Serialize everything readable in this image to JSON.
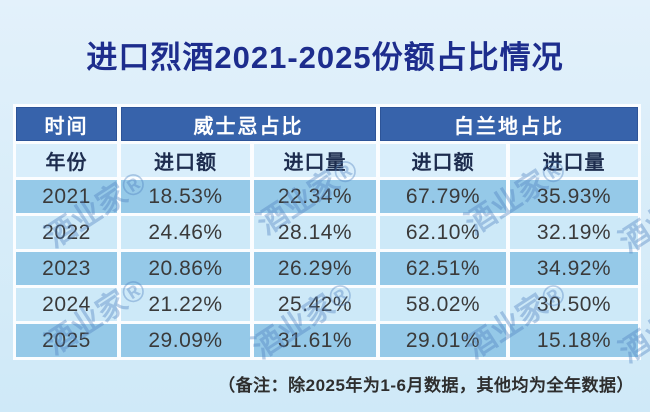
{
  "title": "进口烈酒2021-2025份额占比情况",
  "watermark": {
    "text": "酒业家®"
  },
  "table": {
    "header": {
      "time": "时间",
      "whisky": "威士忌占比",
      "brandy": "白兰地占比"
    },
    "subheader": {
      "year": "年份",
      "value": "进口额",
      "volume": "进口量"
    },
    "rows": [
      {
        "year": "2021",
        "whisky_value": "18.53%",
        "whisky_volume": "22.34%",
        "brandy_value": "67.79%",
        "brandy_volume": "35.93%"
      },
      {
        "year": "2022",
        "whisky_value": "24.46%",
        "whisky_volume": "28.14%",
        "brandy_value": "62.10%",
        "brandy_volume": "32.19%"
      },
      {
        "year": "2023",
        "whisky_value": "20.86%",
        "whisky_volume": "26.29%",
        "brandy_value": "62.51%",
        "brandy_volume": "34.92%"
      },
      {
        "year": "2024",
        "whisky_value": "21.22%",
        "whisky_volume": "25.42%",
        "brandy_value": "58.02%",
        "brandy_volume": "30.50%"
      },
      {
        "year": "2025",
        "whisky_value": "29.09%",
        "whisky_volume": "31.61%",
        "brandy_value": "29.01%",
        "brandy_volume": "15.18%"
      }
    ]
  },
  "note": "（备注：除2025年为1-6月数据，其他均为全年数据）",
  "colors": {
    "title": "#1d2d8d",
    "header_bg": "#3763ab",
    "subheader_bg": "#d9eefb",
    "row_medium": "#95c9e8",
    "row_light": "#cde9f8",
    "background_top": "#e3f1fb",
    "background_bottom": "#cfe9f8",
    "watermark": "#4b7dbe"
  },
  "chart_data": {
    "type": "table",
    "title": "进口烈酒2021-2025份额占比情况",
    "column_groups": [
      "时间",
      "威士忌占比",
      "白兰地占比"
    ],
    "columns": [
      "年份",
      "威士忌进口额",
      "威士忌进口量",
      "白兰地进口额",
      "白兰地进口量"
    ],
    "rows": [
      [
        "2021",
        "18.53%",
        "22.34%",
        "67.79%",
        "35.93%"
      ],
      [
        "2022",
        "24.46%",
        "28.14%",
        "62.10%",
        "32.19%"
      ],
      [
        "2023",
        "20.86%",
        "26.29%",
        "62.51%",
        "34.92%"
      ],
      [
        "2024",
        "21.22%",
        "25.42%",
        "58.02%",
        "30.50%"
      ],
      [
        "2025",
        "29.09%",
        "31.61%",
        "29.01%",
        "15.18%"
      ]
    ],
    "note": "（备注：除2025年为1-6月数据，其他均为全年数据）"
  }
}
